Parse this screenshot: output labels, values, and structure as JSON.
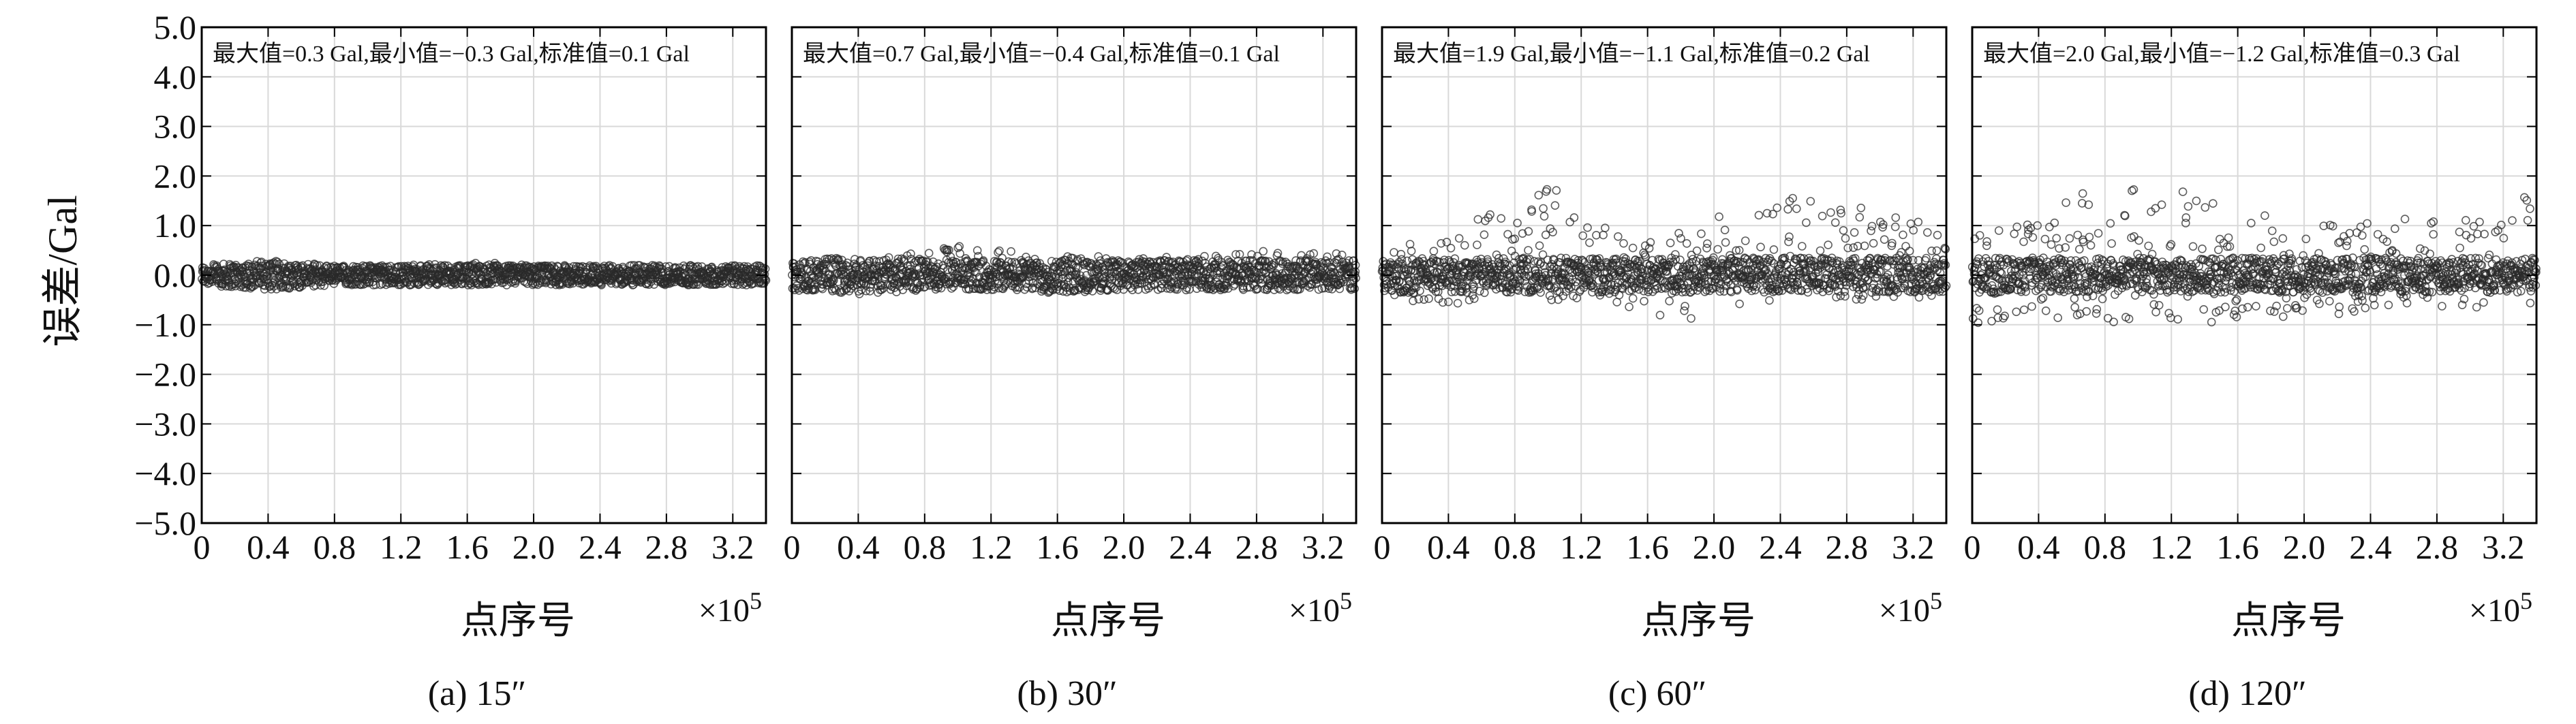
{
  "chart_data": {
    "type": "scatter",
    "ylabel": "误差/Gal",
    "xlabel": "点序号",
    "x_scale_label": "×10",
    "x_scale_exponent": "5",
    "xlim": [
      0,
      3.4
    ],
    "ylim": [
      -5.0,
      5.0
    ],
    "x_ticks": [
      "0",
      "0.4",
      "0.8",
      "1.2",
      "1.6",
      "2.0",
      "2.4",
      "2.8",
      "3.2"
    ],
    "y_ticks": [
      "5.0",
      "4.0",
      "3.0",
      "2.0",
      "1.0",
      "0.0",
      "−1.0",
      "−2.0",
      "−3.0",
      "−4.0",
      "−5.0"
    ],
    "grid": true,
    "marker": "open-circle",
    "panels": [
      {
        "caption": "(a) 15″",
        "annotation": "最大值=0.3 Gal,最小值=−0.3 Gal,标准值=0.1 Gal",
        "max": 0.3,
        "min": -0.3,
        "std": 0.1,
        "envelope": {
          "x": [
            0,
            0.4,
            0.8,
            1.2,
            1.6,
            2.0,
            2.4,
            2.8,
            3.2,
            3.4
          ],
          "upper": [
            0.3,
            0.3,
            0.2,
            0.2,
            0.3,
            0.2,
            0.2,
            0.2,
            0.2,
            0.2
          ],
          "lower": [
            -0.2,
            -0.3,
            -0.2,
            -0.2,
            -0.2,
            -0.2,
            -0.2,
            -0.2,
            -0.2,
            -0.2
          ]
        }
      },
      {
        "caption": "(b) 30″",
        "annotation": "最大值=0.7 Gal,最小值=−0.4 Gal,标准值=0.1 Gal",
        "max": 0.7,
        "min": -0.4,
        "std": 0.1,
        "envelope": {
          "x": [
            0,
            0.4,
            0.8,
            1.0,
            1.2,
            1.4,
            1.6,
            2.0,
            2.4,
            2.8,
            3.2,
            3.4
          ],
          "upper": [
            0.3,
            0.4,
            0.5,
            0.6,
            0.7,
            0.4,
            0.4,
            0.4,
            0.4,
            0.5,
            0.5,
            0.4
          ],
          "lower": [
            -0.3,
            -0.4,
            -0.3,
            -0.3,
            -0.3,
            -0.3,
            -0.4,
            -0.3,
            -0.3,
            -0.3,
            -0.3,
            -0.3
          ]
        }
      },
      {
        "caption": "(c) 60″",
        "annotation": "最大值=1.9 Gal,最小值=−1.1 Gal,标准值=0.2 Gal",
        "max": 1.9,
        "min": -1.1,
        "std": 0.2,
        "envelope": {
          "x": [
            0,
            0.4,
            0.6,
            0.8,
            1.0,
            1.2,
            1.4,
            1.6,
            1.8,
            2.0,
            2.2,
            2.4,
            2.8,
            3.2,
            3.4
          ],
          "upper": [
            0.6,
            0.7,
            1.2,
            1.6,
            1.9,
            1.4,
            0.8,
            0.9,
            1.0,
            1.3,
            1.4,
            1.6,
            1.4,
            1.3,
            0.9
          ],
          "lower": [
            -0.5,
            -0.6,
            -0.6,
            -0.5,
            -0.5,
            -0.5,
            -0.6,
            -0.7,
            -1.1,
            -0.9,
            -0.6,
            -0.5,
            -0.5,
            -0.5,
            -0.4
          ]
        }
      },
      {
        "caption": "(d) 120″",
        "annotation": "最大值=2.0 Gal,最小值=−1.2 Gal,标准值=0.3 Gal",
        "max": 2.0,
        "min": -1.2,
        "std": 0.3,
        "envelope": {
          "x": [
            0,
            0.4,
            0.6,
            0.8,
            1.0,
            1.2,
            1.4,
            1.6,
            1.8,
            2.0,
            2.2,
            2.4,
            2.8,
            3.0,
            3.2,
            3.4
          ],
          "upper": [
            1.1,
            1.1,
            1.6,
            2.0,
            2.0,
            1.8,
            1.5,
            1.3,
            1.3,
            1.0,
            1.1,
            1.1,
            1.2,
            1.2,
            1.0,
            1.9
          ],
          "lower": [
            -1.0,
            -0.9,
            -1.0,
            -1.0,
            -1.0,
            -0.9,
            -1.0,
            -1.2,
            -1.0,
            -0.8,
            -0.8,
            -0.7,
            -0.7,
            -0.7,
            -0.7,
            -0.6
          ]
        }
      }
    ]
  }
}
